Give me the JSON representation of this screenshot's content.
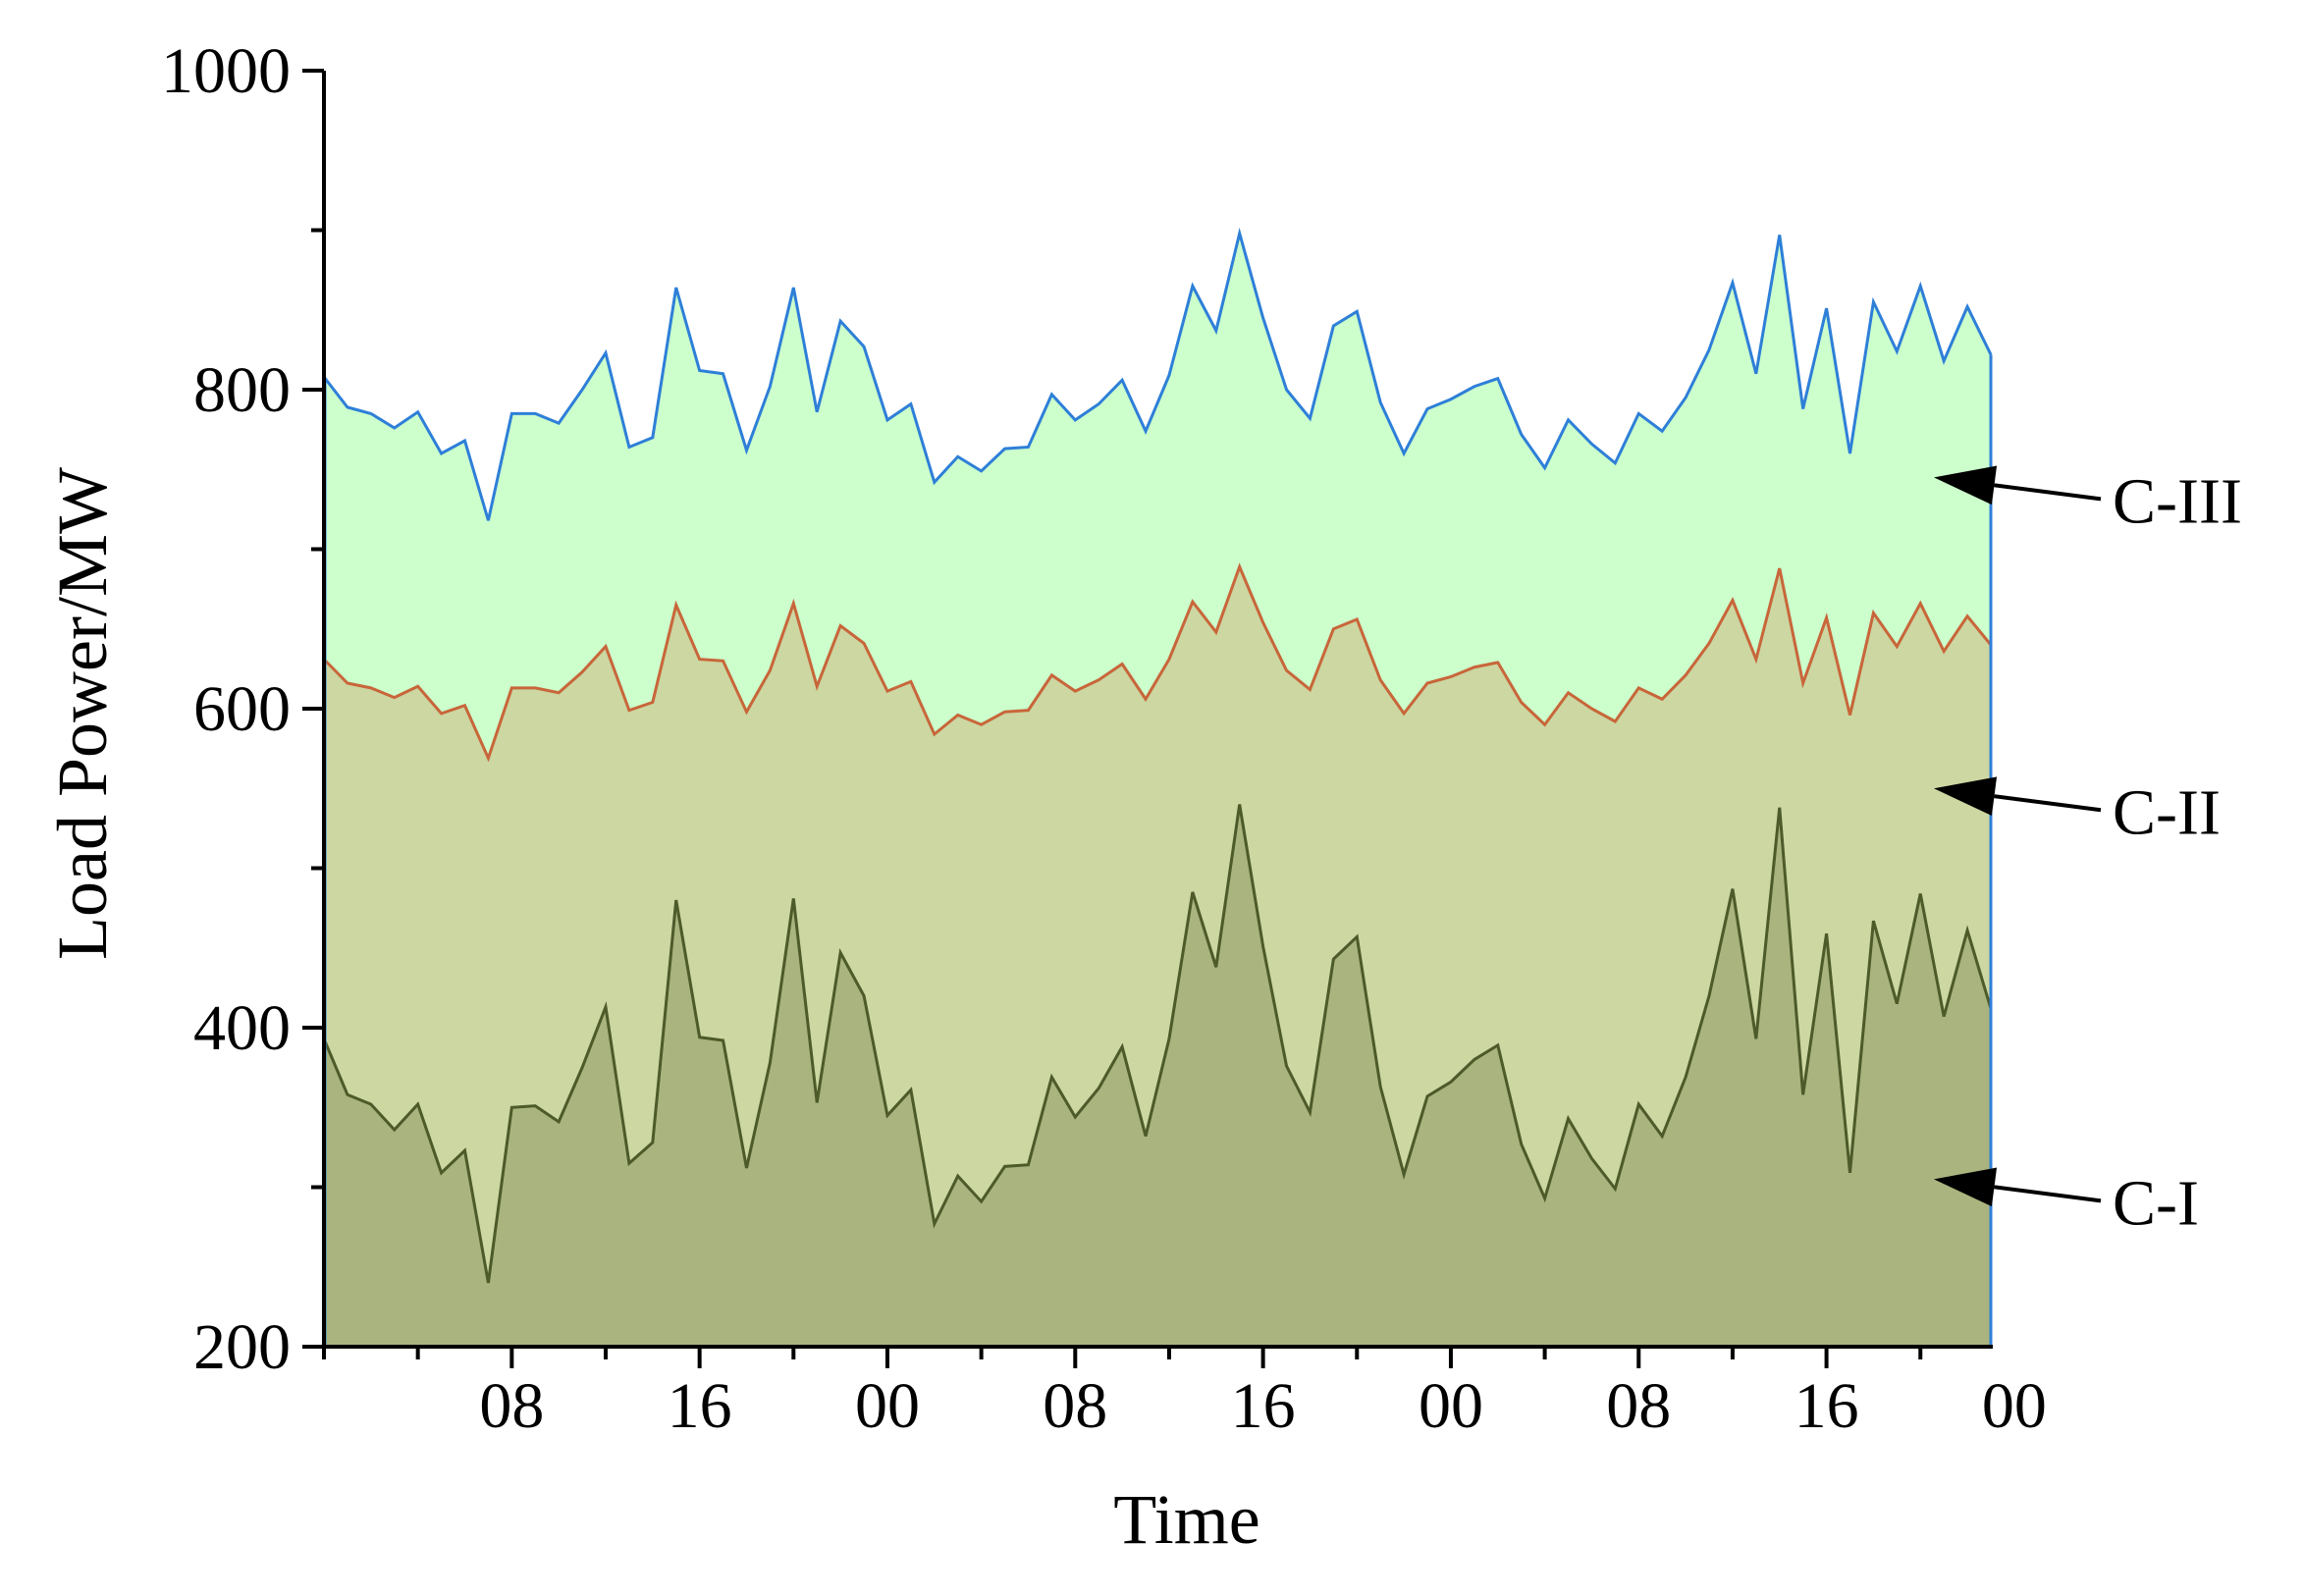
{
  "chart_data": {
    "type": "area",
    "title": "",
    "xlabel": "Time",
    "ylabel": "Load Power/MW",
    "ylim": [
      200,
      1000
    ],
    "yticks": [
      200,
      400,
      600,
      800,
      1000
    ],
    "x_tick_labels": [
      "08",
      "16",
      "00",
      "08",
      "16",
      "00",
      "08",
      "16",
      "00"
    ],
    "x_hours": [
      0,
      1,
      2,
      3,
      4,
      5,
      6,
      7,
      8,
      9,
      10,
      11,
      12,
      13,
      14,
      15,
      16,
      17,
      18,
      19,
      20,
      21,
      22,
      23,
      24,
      25,
      26,
      27,
      28,
      29,
      30,
      31,
      32,
      33,
      34,
      35,
      36,
      37,
      38,
      39,
      40,
      41,
      42,
      43,
      44,
      45,
      46,
      47,
      48,
      49,
      50,
      51,
      52,
      53,
      54,
      55,
      56,
      57,
      58,
      59,
      60,
      61,
      62,
      63,
      64,
      65,
      66,
      67,
      68,
      69,
      70,
      71
    ],
    "grid": false,
    "colors": {
      "C-I_fill": "#aab47e",
      "C-I_line": "#4d5a2a",
      "C-II_fill": "#ccd7a2",
      "C-II_line": "#c8663a",
      "C-III_fill": "#ccffcc",
      "C-III_line": "#2e7fd8",
      "axis": "#000000"
    },
    "series": [
      {
        "name": "C-I",
        "values": [
          393,
          358,
          352,
          336,
          352,
          309,
          323,
          240,
          350,
          351,
          341,
          375,
          413,
          315,
          328,
          480,
          394,
          392,
          312,
          378,
          481,
          353,
          447,
          420,
          345,
          361,
          277,
          307,
          291,
          313,
          314,
          369,
          344,
          362,
          388,
          332,
          393,
          485,
          438,
          540,
          451,
          376,
          347,
          443,
          457,
          363,
          308,
          357,
          366,
          380,
          389,
          327,
          293,
          343,
          318,
          299,
          352,
          332,
          369,
          420,
          487,
          393,
          538,
          358,
          459,
          309,
          467,
          415,
          484,
          407,
          461,
          412
        ]
      },
      {
        "name": "C-II",
        "values": [
          631,
          616,
          613,
          607,
          614,
          597,
          602,
          569,
          613,
          613,
          610,
          623,
          639,
          599,
          604,
          665,
          631,
          630,
          598,
          624,
          666,
          614,
          652,
          641,
          611,
          617,
          584,
          596,
          590,
          598,
          599,
          621,
          611,
          618,
          628,
          606,
          631,
          667,
          648,
          689,
          654,
          624,
          612,
          650,
          656,
          618,
          597,
          616,
          620,
          626,
          629,
          604,
          590,
          610,
          600,
          592,
          613,
          606,
          621,
          641,
          668,
          631,
          688,
          616,
          657,
          596,
          660,
          639,
          666,
          636,
          658,
          640
        ]
      },
      {
        "name": "C-III",
        "values": [
          808,
          789,
          785,
          776,
          786,
          760,
          768,
          718,
          785,
          785,
          779,
          800,
          823,
          764,
          770,
          864,
          812,
          810,
          762,
          802,
          864,
          786,
          843,
          827,
          781,
          791,
          742,
          758,
          749,
          763,
          764,
          797,
          781,
          791,
          806,
          774,
          809,
          865,
          837,
          898,
          845,
          800,
          782,
          840,
          849,
          792,
          760,
          788,
          794,
          802,
          807,
          772,
          751,
          781,
          766,
          754,
          785,
          774,
          795,
          825,
          867,
          810,
          897,
          788,
          851,
          760,
          855,
          824,
          865,
          818,
          852,
          822
        ]
      }
    ],
    "annotations": [
      {
        "text": "C-III",
        "points_to": 745
      },
      {
        "text": "C-II",
        "points_to": 550
      },
      {
        "text": "C-I",
        "points_to": 305
      }
    ]
  }
}
